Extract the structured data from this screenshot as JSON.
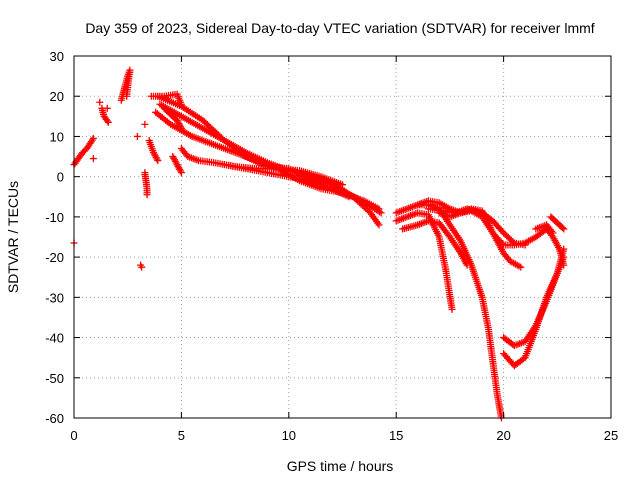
{
  "chart_data": {
    "type": "scatter",
    "title": "Day 359 of 2023, Sidereal Day-to-day VTEC variation (SDTVAR) for receiver lmmf",
    "xlabel": "GPS time / hours",
    "ylabel": "SDTVAR / TECUs",
    "xlim": [
      0,
      25
    ],
    "ylim": [
      -60,
      30
    ],
    "xticks": [
      "0",
      "5",
      "10",
      "15",
      "20",
      "25"
    ],
    "yticks": [
      "30",
      "20",
      "10",
      "0",
      "-10",
      "-20",
      "-30",
      "-40",
      "-50",
      "-60"
    ],
    "grid": true,
    "marker": "+",
    "series": [
      {
        "name": "SDTVAR",
        "color": "#ff0000",
        "tracks": [
          [
            [
              0.0,
              3
            ],
            [
              0.2,
              4.5
            ],
            [
              0.4,
              6
            ],
            [
              0.6,
              7
            ],
            [
              0.9,
              9.5
            ]
          ],
          [
            [
              1.3,
              17
            ],
            [
              1.4,
              15
            ],
            [
              1.6,
              13.5
            ]
          ],
          [
            [
              2.2,
              19
            ],
            [
              2.35,
              22
            ],
            [
              2.5,
              25
            ],
            [
              2.6,
              26.5
            ],
            [
              2.45,
              20
            ]
          ],
          [
            [
              3.3,
              1
            ],
            [
              3.35,
              -1
            ],
            [
              3.4,
              -3
            ],
            [
              3.4,
              -4.5
            ]
          ],
          [
            [
              3.5,
              9
            ],
            [
              3.7,
              6
            ],
            [
              3.9,
              4
            ]
          ],
          [
            [
              3.6,
              20
            ],
            [
              4.2,
              20
            ],
            [
              4.8,
              20.5
            ],
            [
              5.0,
              18
            ]
          ],
          [
            [
              4.2,
              17
            ],
            [
              4.5,
              15.5
            ],
            [
              4.8,
              14
            ],
            [
              5.0,
              12
            ]
          ],
          [
            [
              4.6,
              5
            ],
            [
              4.8,
              3
            ],
            [
              5.0,
              1
            ]
          ],
          [
            [
              5.0,
              7
            ],
            [
              5.3,
              5
            ],
            [
              5.8,
              4
            ],
            [
              6.5,
              3.5
            ],
            [
              7.5,
              2.5
            ],
            [
              8.5,
              2
            ],
            [
              9.5,
              2
            ],
            [
              10.5,
              1.5
            ],
            [
              11.5,
              0
            ],
            [
              12.5,
              -2
            ]
          ],
          [
            [
              3.8,
              16
            ],
            [
              4.5,
              13
            ],
            [
              5.5,
              10
            ],
            [
              6.5,
              8
            ],
            [
              7.5,
              6
            ],
            [
              8.5,
              4
            ],
            [
              9.5,
              2
            ],
            [
              10.5,
              -1
            ],
            [
              11.5,
              -3
            ],
            [
              12.5,
              -4
            ],
            [
              13.5,
              -6
            ],
            [
              14.2,
              -8
            ]
          ],
          [
            [
              4.0,
              18
            ],
            [
              5,
              15
            ],
            [
              6,
              12
            ],
            [
              7,
              9
            ],
            [
              8,
              6
            ],
            [
              9,
              3.5
            ],
            [
              10,
              1.5
            ],
            [
              11,
              0
            ],
            [
              12,
              -2
            ],
            [
              13,
              -5
            ],
            [
              14,
              -8
            ],
            [
              14.3,
              -9
            ]
          ],
          [
            [
              3.9,
              20
            ],
            [
              5,
              17.5
            ],
            [
              6,
              14
            ],
            [
              7,
              9
            ],
            [
              8,
              5
            ],
            [
              9,
              2.5
            ],
            [
              10,
              2
            ],
            [
              11,
              -0.5
            ],
            [
              12,
              -1.5
            ],
            [
              13,
              -5
            ],
            [
              13.8,
              -9
            ],
            [
              14.2,
              -12
            ]
          ],
          [
            [
              7,
              3
            ],
            [
              8,
              2
            ],
            [
              9,
              1
            ],
            [
              10,
              0
            ],
            [
              11,
              -1
            ],
            [
              12,
              -3
            ],
            [
              12.8,
              -5
            ]
          ],
          [
            [
              15,
              -9
            ],
            [
              15.5,
              -8
            ],
            [
              16,
              -7
            ],
            [
              16.5,
              -7
            ],
            [
              17,
              -8
            ],
            [
              17.5,
              -12
            ],
            [
              18,
              -16
            ],
            [
              18.5,
              -22
            ],
            [
              19,
              -30
            ],
            [
              19.3,
              -38
            ],
            [
              19.5,
              -46
            ],
            [
              19.7,
              -54
            ],
            [
              19.9,
              -60
            ]
          ],
          [
            [
              15,
              -11
            ],
            [
              15.5,
              -10
            ],
            [
              16,
              -9
            ],
            [
              16.5,
              -9.5
            ],
            [
              17,
              -15
            ],
            [
              17.3,
              -23
            ],
            [
              17.6,
              -33
            ]
          ],
          [
            [
              15.3,
              -13
            ],
            [
              16,
              -12
            ],
            [
              16.5,
              -11
            ],
            [
              17,
              -11.5
            ],
            [
              17.5,
              -15
            ],
            [
              18,
              -19
            ],
            [
              18.3,
              -22
            ]
          ],
          [
            [
              16,
              -7
            ],
            [
              16.5,
              -6
            ],
            [
              17,
              -6.5
            ],
            [
              17.5,
              -8
            ],
            [
              18,
              -9
            ],
            [
              18.5,
              -8.5
            ],
            [
              19,
              -10
            ],
            [
              19.5,
              -14
            ],
            [
              20,
              -17
            ],
            [
              20.5,
              -17
            ],
            [
              21,
              -16.5
            ],
            [
              21.5,
              -15
            ],
            [
              22,
              -13
            ]
          ],
          [
            [
              16.5,
              -8
            ],
            [
              17.2,
              -8.5
            ],
            [
              17.8,
              -9
            ],
            [
              18.3,
              -8
            ],
            [
              19,
              -9
            ],
            [
              19.5,
              -11
            ],
            [
              20,
              -14
            ],
            [
              20.5,
              -16.5
            ],
            [
              21,
              -17
            ]
          ],
          [
            [
              17,
              -9
            ],
            [
              17.5,
              -10
            ],
            [
              18,
              -9
            ],
            [
              18.5,
              -8
            ],
            [
              19,
              -8.5
            ],
            [
              19.5,
              -14
            ],
            [
              20,
              -19
            ],
            [
              20.3,
              -21
            ],
            [
              20.8,
              -22.5
            ]
          ],
          [
            [
              20,
              -40
            ],
            [
              20.5,
              -42
            ],
            [
              21,
              -41
            ],
            [
              21.5,
              -37
            ],
            [
              22,
              -31
            ],
            [
              22.5,
              -24
            ],
            [
              22.8,
              -18
            ]
          ],
          [
            [
              20,
              -44
            ],
            [
              20.5,
              -47
            ],
            [
              21,
              -45
            ],
            [
              21.5,
              -38
            ],
            [
              22,
              -30
            ],
            [
              22.5,
              -24
            ],
            [
              22.8,
              -20
            ]
          ],
          [
            [
              22,
              -13
            ],
            [
              22.3,
              -15
            ],
            [
              22.6,
              -18
            ],
            [
              22.8,
              -22
            ]
          ],
          [
            [
              22.2,
              -10
            ],
            [
              22.5,
              -11.5
            ],
            [
              22.8,
              -13
            ]
          ],
          [
            [
              21.5,
              -13
            ],
            [
              22,
              -12
            ],
            [
              22.3,
              -14
            ]
          ]
        ],
        "points": [
          [
            0,
            -16.5
          ],
          [
            0.9,
            4.5
          ],
          [
            1.2,
            18.5
          ],
          [
            1.55,
            17
          ],
          [
            2.95,
            10
          ],
          [
            3.1,
            -22
          ],
          [
            3.15,
            -22.5
          ],
          [
            3.3,
            13
          ],
          [
            3.3,
            0.5
          ],
          [
            2.6,
            26
          ]
        ]
      }
    ]
  }
}
